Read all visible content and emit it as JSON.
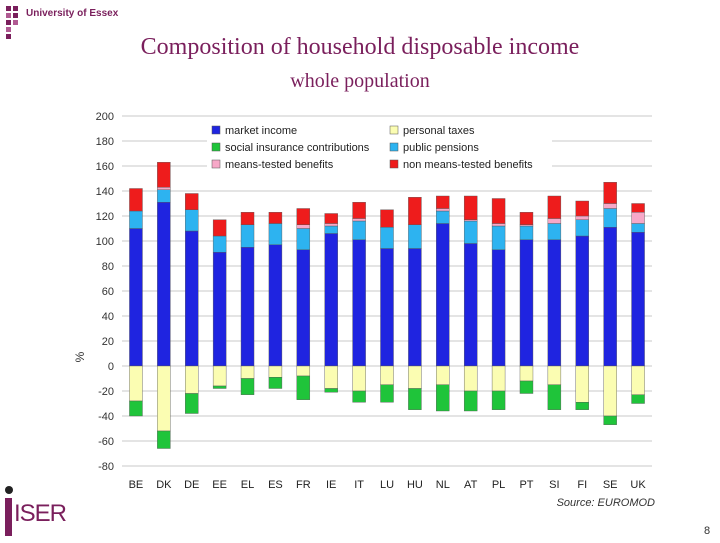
{
  "header": {
    "university": "University of Essex"
  },
  "title": "Composition of household disposable income",
  "subtitle": "whole population",
  "footer": {
    "iser": "ISER",
    "page_number": "8"
  },
  "chart_data": {
    "type": "bar",
    "stacked": true,
    "categories": [
      "BE",
      "DK",
      "DE",
      "EE",
      "EL",
      "ES",
      "FR",
      "IE",
      "IT",
      "LU",
      "HU",
      "NL",
      "AT",
      "PL",
      "PT",
      "SI",
      "FI",
      "SE",
      "UK"
    ],
    "ylabel": "%",
    "ylim": [
      -80,
      200
    ],
    "yticks": [
      200,
      180,
      160,
      140,
      120,
      100,
      80,
      60,
      40,
      20,
      0,
      -20,
      -40,
      -60,
      -80
    ],
    "grid": "horizontal",
    "legend_position": "top",
    "source": "Source: EUROMOD",
    "series": [
      {
        "name": "market income",
        "color": "#1f24e0",
        "values": [
          110,
          131,
          108,
          91,
          95,
          97,
          93,
          106,
          101,
          94,
          94,
          114,
          98,
          93,
          101,
          101,
          104,
          111,
          107
        ]
      },
      {
        "name": "public pensions",
        "color": "#2db3f0",
        "values": [
          14,
          10,
          17,
          13,
          18,
          17,
          17,
          6,
          15,
          17,
          19,
          10,
          18,
          19,
          11,
          13,
          13,
          15,
          7
        ]
      },
      {
        "name": "means-tested benefits",
        "color": "#f7a8c8",
        "values": [
          0,
          2,
          0,
          0,
          0,
          0,
          3,
          2,
          2,
          0,
          0,
          2,
          1,
          2,
          1,
          4,
          3,
          4,
          9
        ]
      },
      {
        "name": "non means-tested benefits",
        "color": "#ee1c1c",
        "values": [
          18,
          20,
          13,
          13,
          10,
          9,
          13,
          8,
          13,
          14,
          22,
          10,
          19,
          20,
          10,
          18,
          12,
          17,
          7
        ]
      },
      {
        "name": "personal taxes",
        "color": "#fbfdb2",
        "values": [
          -28,
          -52,
          -22,
          -16,
          -10,
          -9,
          -8,
          -18,
          -20,
          -15,
          -18,
          -15,
          -20,
          -20,
          -12,
          -15,
          -29,
          -40,
          -23
        ]
      },
      {
        "name": "social insurance contributions",
        "color": "#1fc43a",
        "values": [
          -12,
          -14,
          -16,
          -2,
          -13,
          -9,
          -19,
          -3,
          -9,
          -14,
          -17,
          -21,
          -16,
          -15,
          -10,
          -20,
          -6,
          -7,
          -7
        ]
      }
    ]
  }
}
